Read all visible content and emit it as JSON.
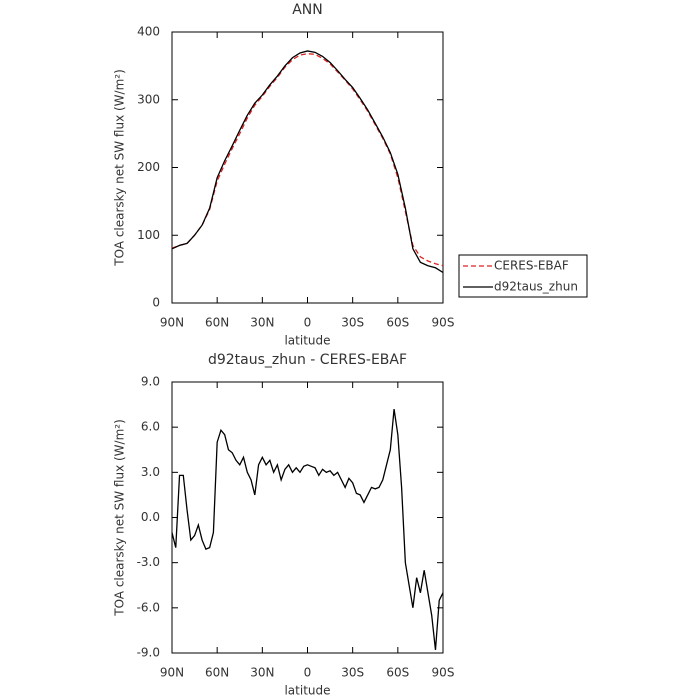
{
  "chart_data": [
    {
      "type": "line",
      "title": "ANN",
      "x_label": "latitude",
      "y_label": "TOA clearsky net SW flux (W/m²)",
      "x": [
        90,
        85,
        80,
        75,
        70,
        65,
        60,
        55,
        50,
        45,
        40,
        35,
        30,
        25,
        20,
        15,
        10,
        5,
        0,
        -5,
        -10,
        -15,
        -20,
        -25,
        -30,
        -35,
        -40,
        -45,
        -50,
        -55,
        -60,
        -65,
        -70,
        -75,
        -80,
        -85,
        -90
      ],
      "series": [
        {
          "name": "CERES-EBAF",
          "color": "#e02020",
          "dash": true,
          "values": [
            81,
            85,
            88,
            100,
            115,
            138,
            180,
            205,
            228,
            250,
            273,
            292,
            305,
            320,
            333,
            348,
            359,
            366,
            368,
            367,
            361,
            353,
            341,
            329,
            316,
            300,
            283,
            263,
            243,
            220,
            185,
            135,
            85,
            68,
            62,
            58,
            55
          ]
        },
        {
          "name": "d92taus_zhun",
          "color": "#000000",
          "dash": false,
          "values": [
            80,
            85,
            88,
            100,
            115,
            140,
            185,
            210,
            232,
            255,
            277,
            295,
            307,
            322,
            335,
            350,
            362,
            369,
            372,
            370,
            364,
            355,
            343,
            330,
            318,
            302,
            285,
            265,
            245,
            222,
            190,
            140,
            80,
            60,
            55,
            52,
            45
          ]
        }
      ],
      "xlim": [
        90,
        -90
      ],
      "xticks": [
        {
          "value": 90,
          "label": "90N"
        },
        {
          "value": 60,
          "label": "60N"
        },
        {
          "value": 30,
          "label": "30N"
        },
        0,
        {
          "value": -30,
          "label": "30S"
        },
        {
          "value": -60,
          "label": "60S"
        },
        {
          "value": -90,
          "label": "90S"
        }
      ],
      "ylim": [
        0,
        400
      ],
      "yticks": [
        0,
        100,
        200,
        300,
        400
      ],
      "legend": "right"
    },
    {
      "type": "line",
      "title": "d92taus_zhun - CERES-EBAF",
      "x_label": "latitude",
      "y_label": "TOA clearsky net SW flux (W/m²)",
      "x": [
        90,
        87.5,
        85,
        82.5,
        80,
        77.5,
        75,
        72.5,
        70,
        67.5,
        65,
        62.5,
        60,
        57.5,
        55,
        52.5,
        50,
        47.5,
        45,
        42.5,
        40,
        37.5,
        35,
        32.5,
        30,
        27.5,
        25,
        22.5,
        20,
        17.5,
        15,
        12.5,
        10,
        7.5,
        5,
        2.5,
        0,
        -2.5,
        -5,
        -7.5,
        -10,
        -12.5,
        -15,
        -17.5,
        -20,
        -22.5,
        -25,
        -27.5,
        -30,
        -32.5,
        -35,
        -37.5,
        -40,
        -42.5,
        -45,
        -47.5,
        -50,
        -52.5,
        -55,
        -57.5,
        -60,
        -62.5,
        -65,
        -67.5,
        -70,
        -72.5,
        -75,
        -77.5,
        -80,
        -82.5,
        -85,
        -87.5,
        -90
      ],
      "series": [
        {
          "name": "d92taus_zhun - CERES-EBAF",
          "color": "#000000",
          "dash": false,
          "values": [
            -1.0,
            -2.0,
            2.8,
            2.8,
            0.5,
            -1.5,
            -1.2,
            -0.5,
            -1.5,
            -2.1,
            -2.0,
            -1.0,
            5.0,
            5.8,
            5.5,
            4.5,
            4.3,
            3.8,
            3.5,
            4.0,
            3.0,
            2.5,
            1.5,
            3.5,
            4.0,
            3.5,
            3.8,
            3.0,
            3.5,
            2.5,
            3.2,
            3.5,
            3.0,
            3.3,
            3.0,
            3.4,
            3.5,
            3.4,
            3.3,
            2.8,
            3.2,
            3.0,
            3.1,
            2.8,
            3.0,
            2.5,
            2.0,
            2.6,
            2.3,
            1.6,
            1.5,
            1.0,
            1.5,
            2.0,
            1.9,
            2.0,
            2.5,
            3.5,
            4.5,
            7.2,
            5.5,
            2.0,
            -3.0,
            -4.5,
            -6.0,
            -4.0,
            -5.0,
            -3.5,
            -5.0,
            -6.5,
            -8.8,
            -5.5,
            -5.0
          ]
        }
      ],
      "xlim": [
        90,
        -90
      ],
      "xticks": [
        {
          "value": 90,
          "label": "90N"
        },
        {
          "value": 60,
          "label": "60N"
        },
        {
          "value": 30,
          "label": "30N"
        },
        0,
        {
          "value": -30,
          "label": "30S"
        },
        {
          "value": -60,
          "label": "60S"
        },
        {
          "value": -90,
          "label": "90S"
        }
      ],
      "ylim": [
        -9,
        9
      ],
      "yticks": [
        {
          "value": -9,
          "label": "-9.0"
        },
        {
          "value": -6,
          "label": "-6.0"
        },
        {
          "value": -3,
          "label": "-3.0"
        },
        {
          "value": 0,
          "label": "0.0"
        },
        {
          "value": 3,
          "label": "3.0"
        },
        {
          "value": 6,
          "label": "6.0"
        },
        {
          "value": 9,
          "label": "9.0"
        }
      ]
    }
  ]
}
